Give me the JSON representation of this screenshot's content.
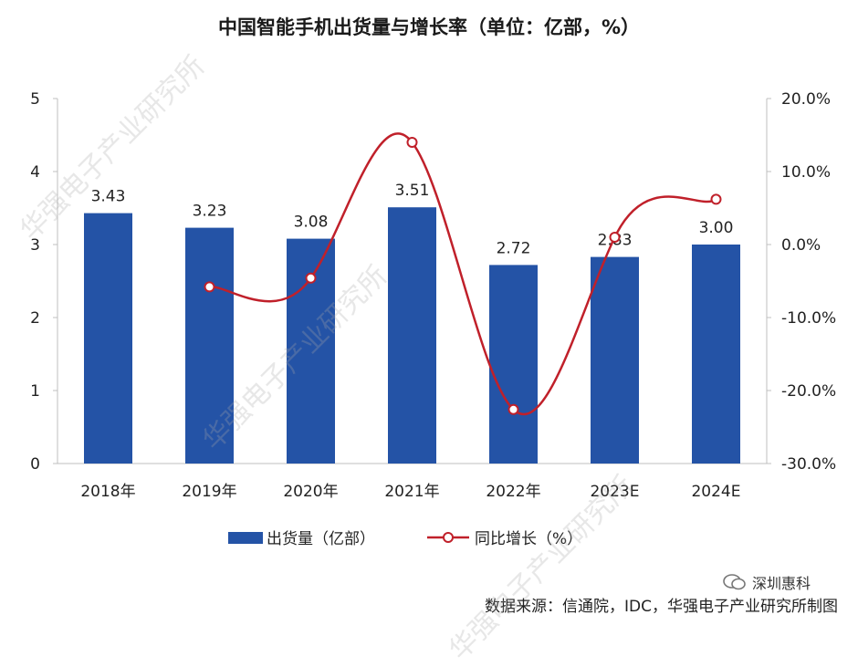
{
  "title": "中国智能手机出货量与增长率（单位：亿部，%）",
  "source": "数据来源：信通院，IDC，华强电子产业研究所制图",
  "badge": "深圳惠科",
  "watermark": "华强电子产业研究所",
  "colors": {
    "bar": "#2453A6",
    "line": "#C0202A",
    "axis": "#bfbfbf",
    "text": "#222222"
  },
  "chart_data": {
    "type": "bar+line",
    "categories": [
      "2018年",
      "2019年",
      "2020年",
      "2021年",
      "2022年",
      "2023E",
      "2024E"
    ],
    "series": [
      {
        "name": "出货量（亿部）",
        "type": "bar",
        "axis": "left",
        "values": [
          3.43,
          3.23,
          3.08,
          3.51,
          2.72,
          2.83,
          3.0
        ],
        "labels": [
          "3.43",
          "3.23",
          "3.08",
          "3.51",
          "2.72",
          "2.83",
          "3.00"
        ]
      },
      {
        "name": "同比增长（%）",
        "type": "line",
        "axis": "right",
        "smooth": true,
        "values": [
          null,
          -5.8,
          -4.6,
          14.0,
          -22.6,
          1.0,
          6.2
        ]
      }
    ],
    "y_left": {
      "min": 0,
      "max": 5,
      "ticks": [
        "0",
        "1",
        "2",
        "3",
        "4",
        "5"
      ]
    },
    "y_right": {
      "min": -30,
      "max": 20,
      "ticks": [
        "-30.0%",
        "-20.0%",
        "-10.0%",
        "0.0%",
        "10.0%",
        "20.0%"
      ]
    },
    "legend_position": "bottom",
    "grid": false
  }
}
